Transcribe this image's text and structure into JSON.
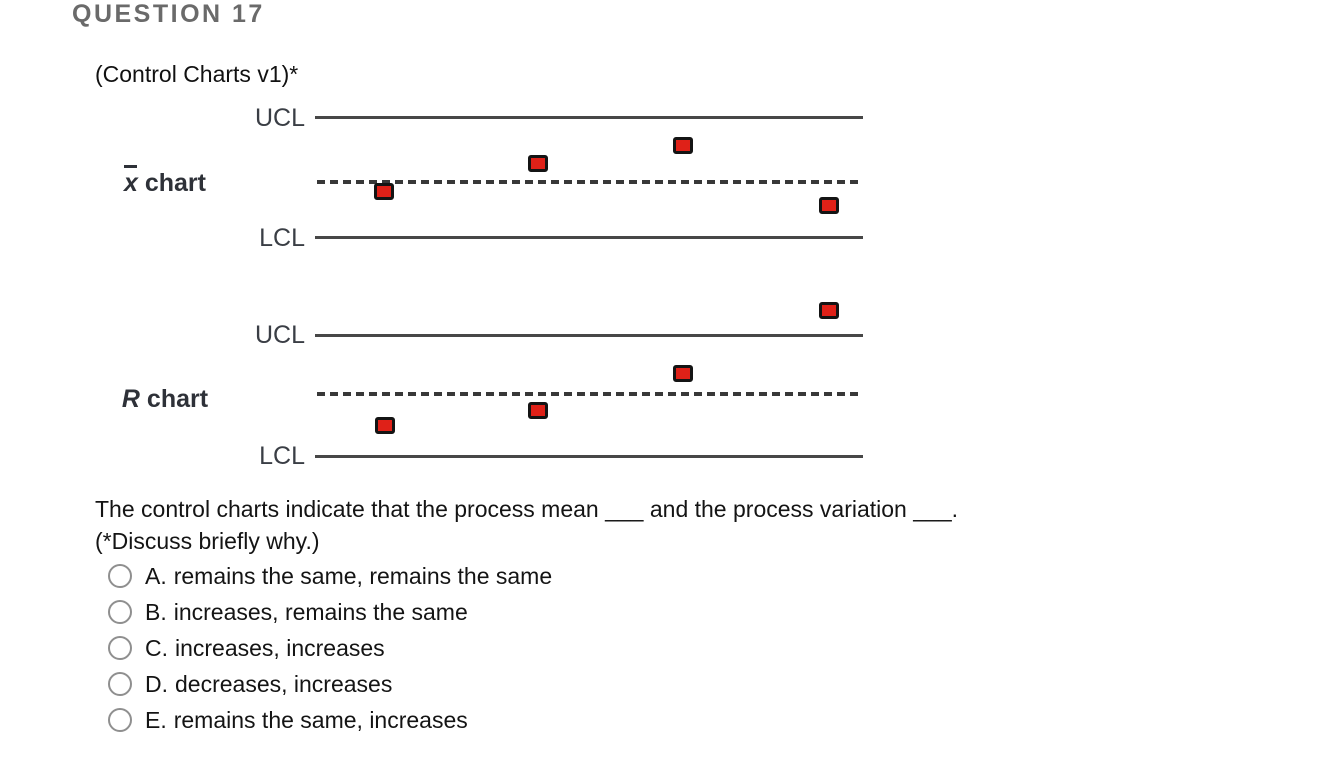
{
  "page": {
    "title": "QUESTION 17",
    "subtitle": "(Control Charts v1)*"
  },
  "chart_data": [
    {
      "type": "scatter",
      "title": "x-bar chart",
      "name_var": "x",
      "name_rest": " chart",
      "ucl_label": "UCL",
      "lcl_label": "LCL",
      "centerline_style": "dashed",
      "y_units": "distance from center line; UCL = +1.05, LCL = -0.95",
      "xlim": [
        0,
        1
      ],
      "points": [
        {
          "x": 0.126,
          "y": -0.17
        },
        {
          "x": 0.407,
          "y": 0.3
        },
        {
          "x": 0.671,
          "y": 0.6
        },
        {
          "x": 0.938,
          "y": -0.4
        }
      ],
      "point_color": "#df2118",
      "point_border": "#141414"
    },
    {
      "type": "scatter",
      "title": "R chart",
      "name_var": "R",
      "name_rest": " chart",
      "ucl_label": "UCL",
      "lcl_label": "LCL",
      "centerline_style": "dashed",
      "y_units": "distance from center line; UCL = +0.97, LCL = -1.05; last point above UCL",
      "xlim": [
        0,
        1
      ],
      "points": [
        {
          "x": 0.127,
          "y": -0.53
        },
        {
          "x": 0.407,
          "y": -0.28
        },
        {
          "x": 0.671,
          "y": 0.33
        },
        {
          "x": 0.938,
          "y": 1.38
        }
      ],
      "point_color": "#df2118",
      "point_border": "#141414"
    }
  ],
  "question": {
    "prompt_line1": "The control charts indicate that the process mean ___ and the process variation ___.",
    "prompt_line2": "(*Discuss briefly why.)",
    "options": [
      {
        "letter": "A.",
        "text": "remains the same, remains the same"
      },
      {
        "letter": "B.",
        "text": "increases, remains the same"
      },
      {
        "letter": "C.",
        "text": "increases, increases"
      },
      {
        "letter": "D.",
        "text": "decreases, increases"
      },
      {
        "letter": "E.",
        "text": "remains the same, increases"
      }
    ]
  }
}
